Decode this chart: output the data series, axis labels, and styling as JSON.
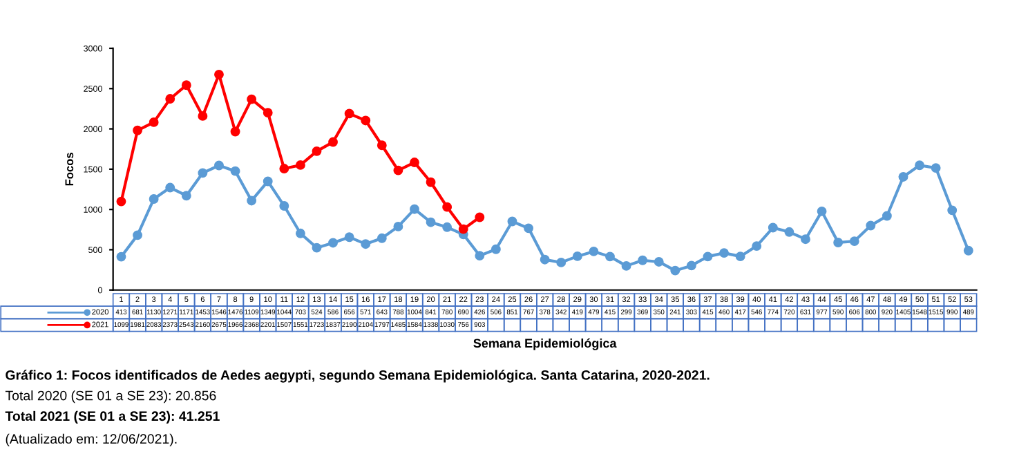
{
  "chart_data": {
    "type": "line",
    "ylabel": "Focos",
    "xlabel": "Semana Epidemiológica",
    "categories": [
      "1",
      "2",
      "3",
      "4",
      "5",
      "6",
      "7",
      "8",
      "9",
      "10",
      "11",
      "12",
      "13",
      "14",
      "15",
      "16",
      "17",
      "18",
      "19",
      "20",
      "21",
      "22",
      "23",
      "24",
      "25",
      "26",
      "27",
      "28",
      "29",
      "30",
      "31",
      "32",
      "33",
      "34",
      "35",
      "36",
      "37",
      "38",
      "39",
      "40",
      "41",
      "42",
      "43",
      "44",
      "45",
      "46",
      "47",
      "48",
      "49",
      "50",
      "51",
      "52",
      "53"
    ],
    "series": [
      {
        "name": "2020",
        "color": "#5b9bd5",
        "values": [
          413,
          681,
          1130,
          1271,
          1171,
          1453,
          1546,
          1476,
          1109,
          1349,
          1044,
          703,
          524,
          586,
          656,
          571,
          643,
          788,
          1004,
          841,
          780,
          690,
          426,
          506,
          851,
          767,
          378,
          342,
          419,
          479,
          415,
          299,
          369,
          350,
          241,
          303,
          415,
          460,
          417,
          546,
          774,
          720,
          631,
          977,
          590,
          606,
          800,
          920,
          1405,
          1548,
          1515,
          990,
          489
        ]
      },
      {
        "name": "2021",
        "color": "#ff0000",
        "values": [
          1099,
          1981,
          2083,
          2373,
          2543,
          2160,
          2675,
          1966,
          2368,
          2201,
          1507,
          1551,
          1723,
          1837,
          2190,
          2104,
          1797,
          1485,
          1584,
          1338,
          1030,
          756,
          903,
          null,
          null,
          null,
          null,
          null,
          null,
          null,
          null,
          null,
          null,
          null,
          null,
          null,
          null,
          null,
          null,
          null,
          null,
          null,
          null,
          null,
          null,
          null,
          null,
          null,
          null,
          null,
          null,
          null,
          null
        ]
      }
    ],
    "ylim": [
      0,
      3000
    ],
    "yticks": [
      0,
      500,
      1000,
      1500,
      2000,
      2500,
      3000
    ],
    "marker": "circle",
    "line_style": "solid",
    "grid": false,
    "legend": "bottom left",
    "data_labels": true,
    "annotations": [
      "Gráfico 1: Focos identificados de Aedes aegypti, segundo Semana Epidemiológica. Santa Catarina, 2020-2021.",
      "Total 2020 (SE 01 a SE 23): 20.856",
      "Total 2021 (SE 01 a SE 23): 41.251",
      "(Atualizado em: 12/06/2021)."
    ]
  }
}
